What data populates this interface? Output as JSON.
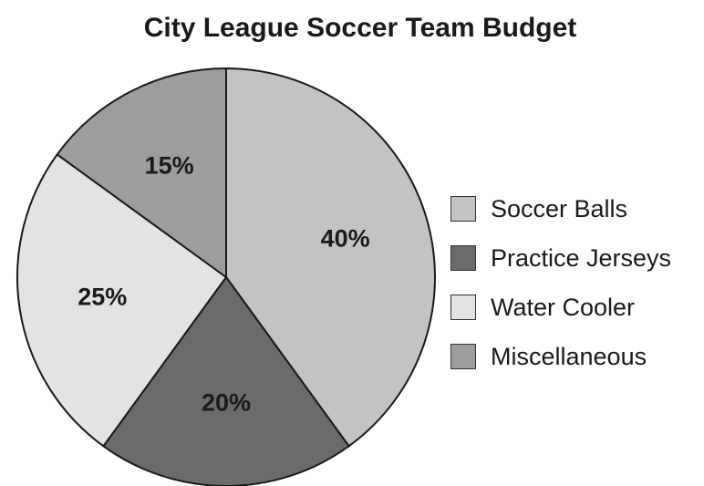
{
  "chart_data": {
    "type": "pie",
    "title": "City League Soccer Team Budget",
    "categories": [
      "Soccer Balls",
      "Practice Jerseys",
      "Water Cooler",
      "Miscellaneous"
    ],
    "values": [
      40,
      20,
      25,
      15
    ],
    "value_labels": [
      "40%",
      "20%",
      "25%",
      "15%"
    ],
    "colors": [
      "#c3c3c3",
      "#6b6b6b",
      "#e3e3e3",
      "#9d9d9d"
    ],
    "legend_position": "right"
  }
}
